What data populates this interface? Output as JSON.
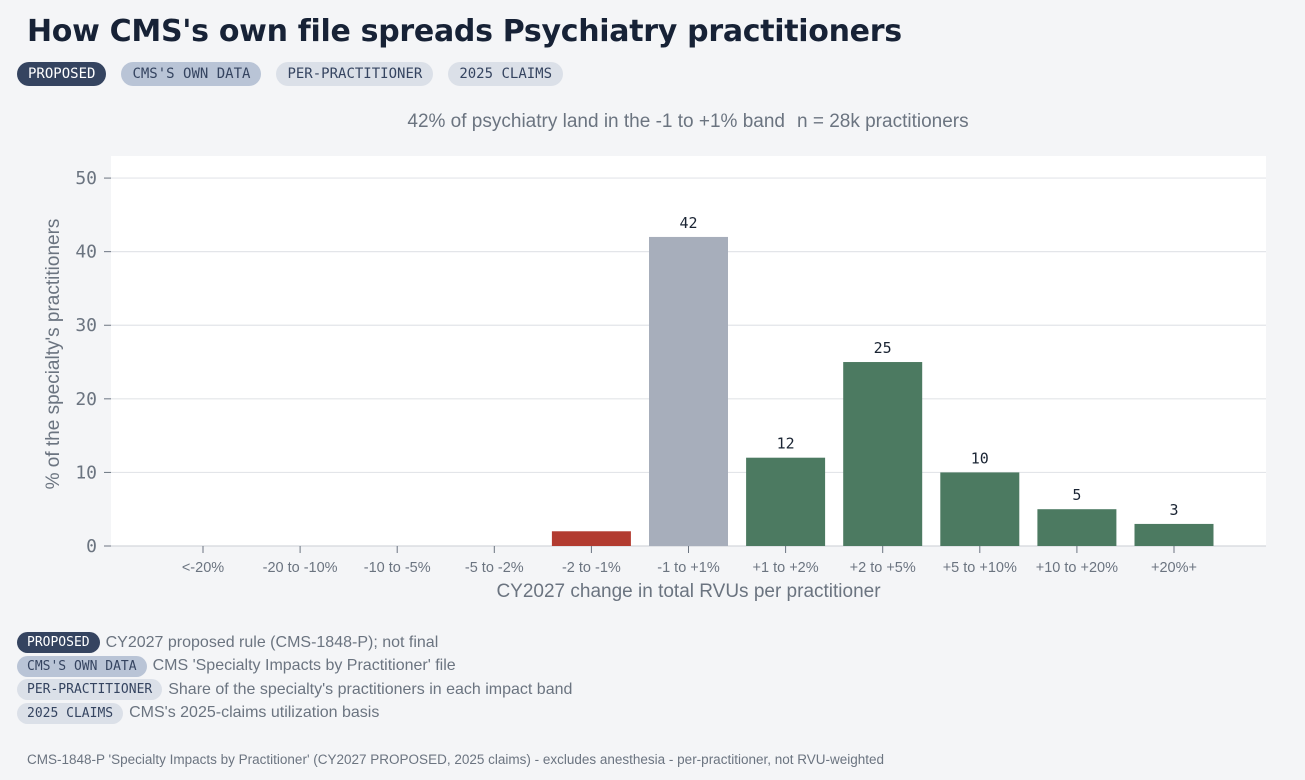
{
  "title": "How CMS's own file spreads Psychiatry practitioners",
  "tags": [
    {
      "label": "PROPOSED",
      "style": "dark"
    },
    {
      "label": "CMS'S OWN DATA",
      "style": "mid"
    },
    {
      "label": "PER-PRACTITIONER",
      "style": "light"
    },
    {
      "label": "2025 CLAIMS",
      "style": "light"
    }
  ],
  "subtitle": {
    "headline": "42% of psychiatry land in the -1 to +1% band",
    "n": "n = 28k practitioners"
  },
  "chart_data": {
    "type": "bar",
    "categories": [
      "<-20%",
      "-20 to -10%",
      "-10 to -5%",
      "-5 to -2%",
      "-2 to -1%",
      "-1 to +1%",
      "+1 to +2%",
      "+2 to +5%",
      "+5 to +10%",
      "+10 to +20%",
      "+20%+"
    ],
    "values": [
      0,
      0,
      0,
      0,
      2,
      42,
      12,
      25,
      10,
      5,
      3
    ],
    "data_labels": [
      "",
      "",
      "",
      "",
      "",
      "42",
      "12",
      "25",
      "10",
      "5",
      "3"
    ],
    "bar_colors": [
      "#b23b30",
      "#b23b30",
      "#b23b30",
      "#b23b30",
      "#b23b30",
      "#a7aebb",
      "#4c7a61",
      "#4c7a61",
      "#4c7a61",
      "#4c7a61",
      "#4c7a61"
    ],
    "xlabel": "CY2027 change in total RVUs per practitioner",
    "ylabel": "% of the specialty's practitioners",
    "ylim": [
      0,
      53
    ],
    "yticks": [
      0,
      10,
      20,
      30,
      40,
      50
    ],
    "grid": true
  },
  "legend": [
    {
      "tag": "PROPOSED",
      "style": "dark",
      "desc": "CY2027 proposed rule (CMS-1848-P); not final"
    },
    {
      "tag": "CMS'S OWN DATA",
      "style": "mid",
      "desc": "CMS 'Specialty Impacts by Practitioner' file"
    },
    {
      "tag": "PER-PRACTITIONER",
      "style": "light",
      "desc": "Share of the specialty's practitioners in each impact band"
    },
    {
      "tag": "2025 CLAIMS",
      "style": "light",
      "desc": "CMS's 2025-claims utilization basis"
    }
  ],
  "footnote": "CMS-1848-P 'Specialty Impacts by Practitioner' (CY2027 PROPOSED, 2025 claims) - excludes anesthesia - per-practitioner, not RVU-weighted",
  "colors": {
    "negative": "#b23b30",
    "neutral": "#a7aebb",
    "positive": "#4c7a61",
    "tag_dark": "#354460"
  }
}
